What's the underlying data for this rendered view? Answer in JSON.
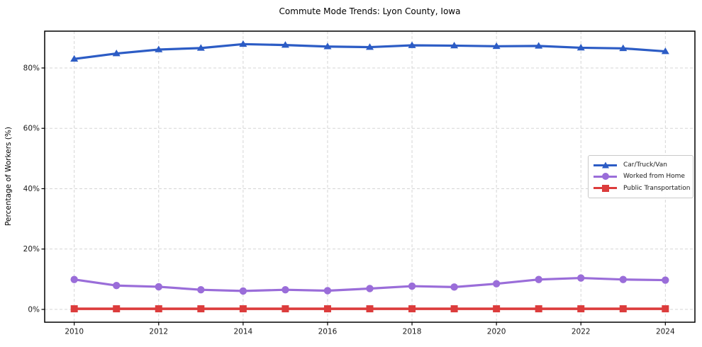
{
  "chart_data": {
    "type": "line",
    "title": "Commute Mode Trends: Lyon County, Iowa",
    "xlabel": "",
    "ylabel": "Percentage of Workers (%)",
    "x": [
      2010,
      2011,
      2012,
      2013,
      2014,
      2015,
      2016,
      2017,
      2018,
      2019,
      2020,
      2021,
      2022,
      2023,
      2024
    ],
    "xlim": [
      2009.3,
      2024.7
    ],
    "ylim": [
      -4.25,
      92.2
    ],
    "grid": true,
    "x_tick_values": [
      2010,
      2012,
      2014,
      2016,
      2018,
      2020,
      2022,
      2024
    ],
    "x_tick_labels": [
      "2010",
      "2012",
      "2014",
      "2016",
      "2018",
      "2020",
      "2022",
      "2024"
    ],
    "y_tick_values": [
      0,
      20,
      40,
      60,
      80
    ],
    "y_tick_labels": [
      "0%",
      "20%",
      "40%",
      "60%",
      "80%"
    ],
    "legend_position": "center-right",
    "series": [
      {
        "name": "Car/Truck/Van",
        "color": "#2c5cc5",
        "marker": "triangle",
        "line_width": 3.2,
        "values": [
          83.0,
          84.8,
          86.1,
          86.6,
          87.9,
          87.6,
          87.1,
          86.9,
          87.5,
          87.4,
          87.2,
          87.3,
          86.7,
          86.5,
          85.5
        ]
      },
      {
        "name": "Worked from Home",
        "color": "#9a6dd9",
        "marker": "circle",
        "line_width": 3.2,
        "values": [
          9.9,
          7.9,
          7.5,
          6.5,
          6.1,
          6.5,
          6.2,
          6.9,
          7.7,
          7.4,
          8.5,
          9.9,
          10.4,
          9.9,
          9.7
        ]
      },
      {
        "name": "Public Transportation",
        "color": "#dc3c3c",
        "marker": "square",
        "line_width": 3.6,
        "values": [
          0.2,
          0.2,
          0.2,
          0.2,
          0.2,
          0.2,
          0.2,
          0.2,
          0.2,
          0.2,
          0.2,
          0.2,
          0.2,
          0.2,
          0.2
        ]
      }
    ]
  }
}
